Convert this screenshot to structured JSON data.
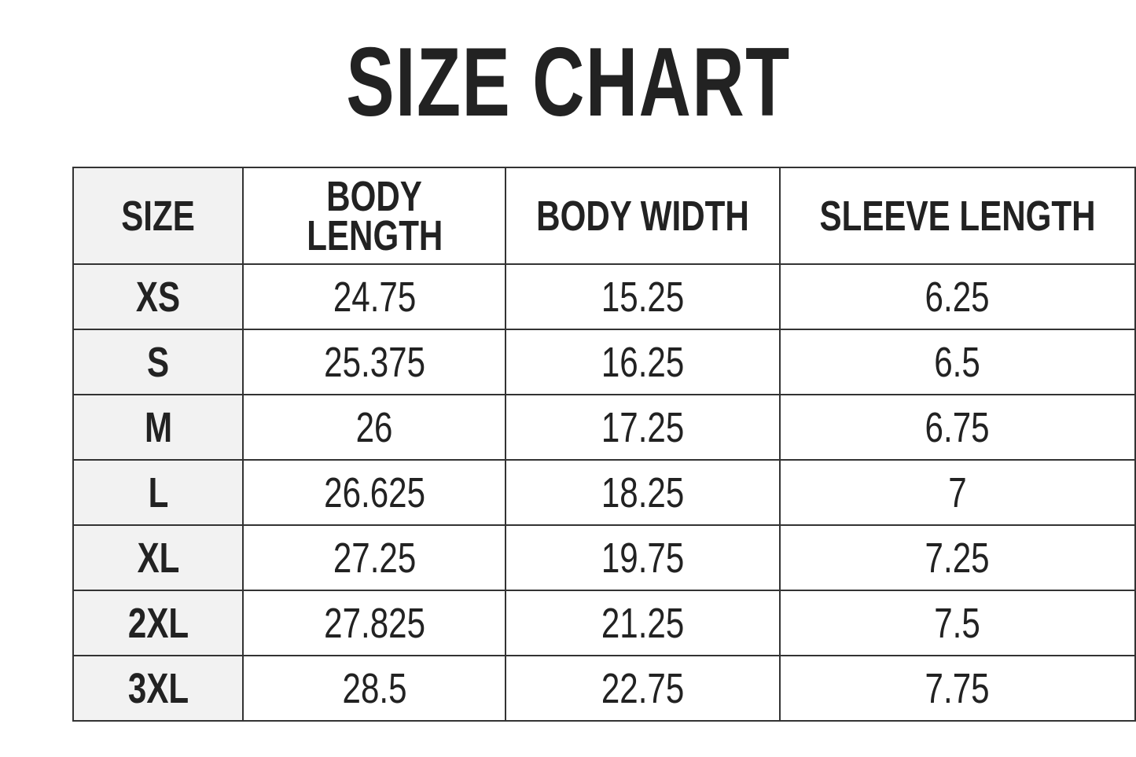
{
  "title": "SIZE CHART",
  "headers": [
    "SIZE",
    "BODY LENGTH",
    "BODY WIDTH",
    "SLEEVE LENGTH"
  ],
  "rows": [
    {
      "size": "XS",
      "body_length": "24.75",
      "body_width": "15.25",
      "sleeve_length": "6.25"
    },
    {
      "size": "S",
      "body_length": "25.375",
      "body_width": "16.25",
      "sleeve_length": "6.5"
    },
    {
      "size": "M",
      "body_length": "26",
      "body_width": "17.25",
      "sleeve_length": "6.75"
    },
    {
      "size": "L",
      "body_length": "26.625",
      "body_width": "18.25",
      "sleeve_length": "7"
    },
    {
      "size": "XL",
      "body_length": "27.25",
      "body_width": "19.75",
      "sleeve_length": "7.25"
    },
    {
      "size": "2XL",
      "body_length": "27.825",
      "body_width": "21.25",
      "sleeve_length": "7.5"
    },
    {
      "size": "3XL",
      "body_length": "28.5",
      "body_width": "22.75",
      "sleeve_length": "7.75"
    }
  ],
  "colors": {
    "text": "#222222",
    "size_column_bg": "#f2f2f2",
    "border": "#333333"
  }
}
